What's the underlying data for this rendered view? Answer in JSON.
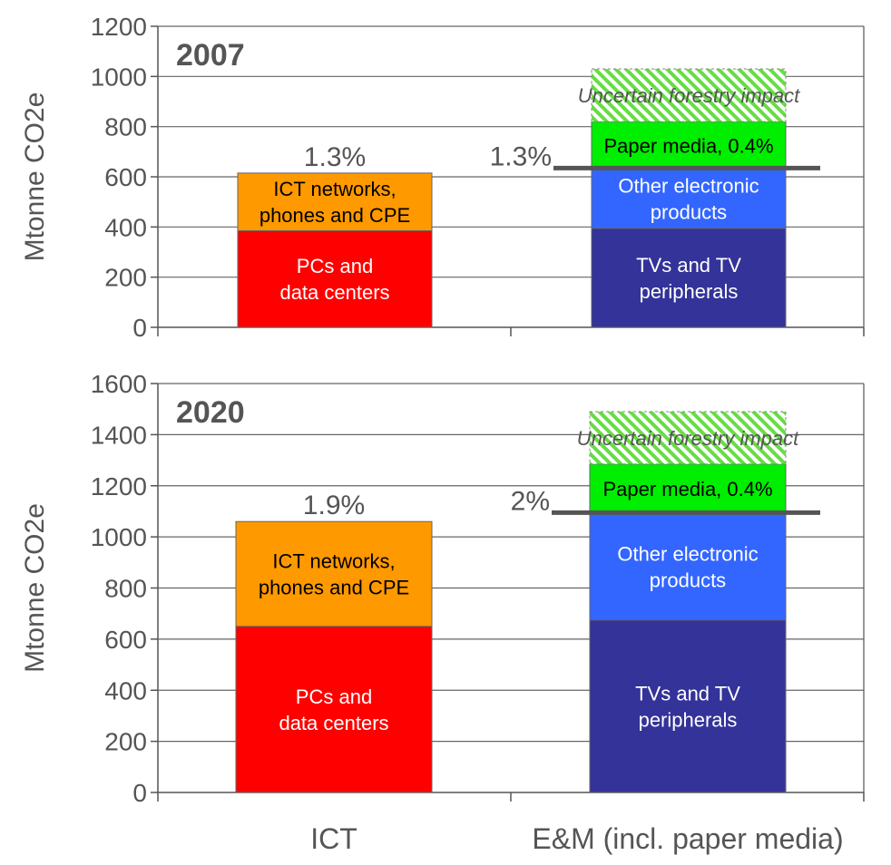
{
  "colors": {
    "pcs": "#ff0000",
    "ict_networks": "#ff9900",
    "tvs": "#333399",
    "other_electronic": "#3366ff",
    "paper_media": "#00ee00",
    "forestry_hatch": "#66dd44",
    "axis": "#555555",
    "grid": "#666666",
    "text": "#555555"
  },
  "chart_data": [
    {
      "type": "bar",
      "stacked": true,
      "title": "2007",
      "ylabel": "Mtonne CO2e",
      "ylim": [
        0,
        1200
      ],
      "yticks": [
        0,
        200,
        400,
        600,
        800,
        1000,
        1200
      ],
      "grid": true,
      "categories": [
        "ICT",
        "E&M (incl. paper media)"
      ],
      "bars": [
        {
          "category": "ICT",
          "total_label": "1.3%",
          "segments": [
            {
              "label": "PCs and\ndata centers",
              "start": 0,
              "end": 385,
              "color_key": "pcs",
              "text_color": "#ffffff"
            },
            {
              "label": "ICT networks,\nphones and CPE",
              "start": 385,
              "end": 615,
              "color_key": "ict_networks",
              "text_color": "#000000"
            }
          ]
        },
        {
          "category": "E&M (incl. paper media)",
          "total_label": "1.3%",
          "reference_line": 635,
          "segments": [
            {
              "label": "TVs and TV\nperipherals",
              "start": 0,
              "end": 395,
              "color_key": "tvs",
              "text_color": "#ffffff"
            },
            {
              "label": "Other electronic\nproducts",
              "start": 395,
              "end": 630,
              "color_key": "other_electronic",
              "text_color": "#ffffff"
            },
            {
              "label": "Paper media, 0.4%",
              "start": 630,
              "end": 820,
              "color_key": "paper_media",
              "text_color": "#000000"
            },
            {
              "label": "Uncertain forestry impact",
              "start": 820,
              "end": 1030,
              "color_key": "forestry_hatch",
              "text_color": "#555555",
              "hatched": true
            }
          ]
        }
      ]
    },
    {
      "type": "bar",
      "stacked": true,
      "title": "2020",
      "ylabel": "Mtonne CO2e",
      "ylim": [
        0,
        1600
      ],
      "yticks": [
        0,
        200,
        400,
        600,
        800,
        1000,
        1200,
        1400,
        1600
      ],
      "grid": true,
      "categories": [
        "ICT",
        "E&M (incl. paper media)"
      ],
      "bars": [
        {
          "category": "ICT",
          "total_label": "1.9%",
          "segments": [
            {
              "label": "PCs and\ndata centers",
              "start": 0,
              "end": 650,
              "color_key": "pcs",
              "text_color": "#ffffff"
            },
            {
              "label": "ICT networks,\nphones and CPE",
              "start": 650,
              "end": 1060,
              "color_key": "ict_networks",
              "text_color": "#000000"
            }
          ]
        },
        {
          "category": "E&M (incl. paper media)",
          "total_label": "2%",
          "reference_line": 1095,
          "segments": [
            {
              "label": "TVs and TV\nperipherals",
              "start": 0,
              "end": 675,
              "color_key": "tvs",
              "text_color": "#ffffff"
            },
            {
              "label": "Other electronic\nproducts",
              "start": 675,
              "end": 1090,
              "color_key": "other_electronic",
              "text_color": "#ffffff"
            },
            {
              "label": "Paper media, 0.4%",
              "start": 1090,
              "end": 1285,
              "color_key": "paper_media",
              "text_color": "#000000"
            },
            {
              "label": "Uncertain forestry impact",
              "start": 1285,
              "end": 1490,
              "color_key": "forestry_hatch",
              "text_color": "#555555",
              "hatched": true
            }
          ]
        }
      ]
    }
  ],
  "x_axis_labels": [
    "ICT",
    "E&M (incl. paper media)"
  ]
}
